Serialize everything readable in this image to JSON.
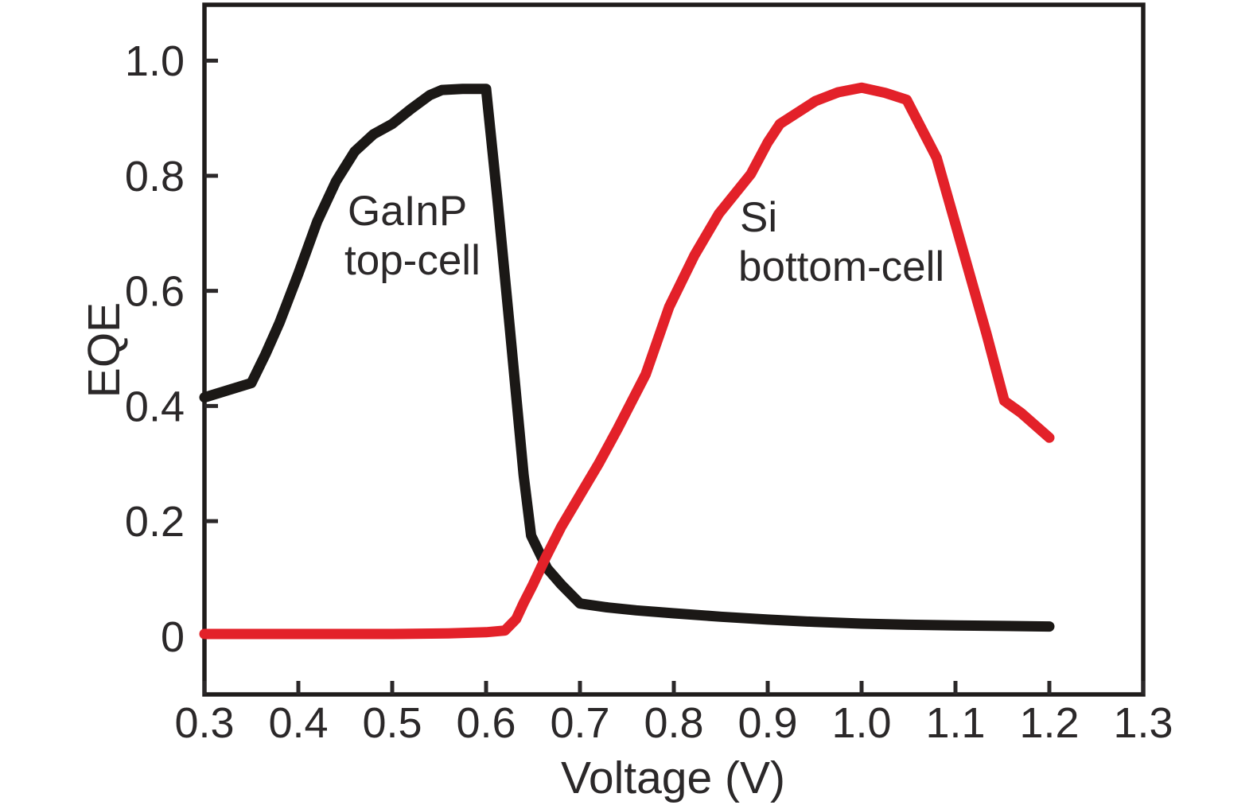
{
  "chart_data": {
    "type": "line",
    "title": "",
    "xlabel": "Voltage (V)",
    "ylabel": "EQE",
    "xlim": [
      0.3,
      1.3
    ],
    "ylim": [
      -0.101,
      1.097
    ],
    "grid": false,
    "legend_position": "none",
    "background_color": "#ffffff",
    "axis_color": "#2b2829",
    "x_ticks": {
      "values": [
        0.3,
        0.4,
        0.5,
        0.6,
        0.7,
        0.8,
        0.9,
        1.0,
        1.1,
        1.2,
        1.3
      ],
      "labels": [
        "0.3",
        "0.4",
        "0.5",
        "0.6",
        "0.7",
        "0.8",
        "0.9",
        "1.0",
        "1.1",
        "1.2",
        "1.3"
      ]
    },
    "y_ticks": {
      "values": [
        0,
        0.2,
        0.4,
        0.6,
        0.8,
        1.0
      ],
      "labels": [
        "0",
        "0.2",
        "0.4",
        "0.6",
        "0.8",
        "1.0"
      ]
    },
    "series": [
      {
        "name": "GaInP top-cell",
        "color": "#1b1816",
        "stroke_width": 13,
        "points": [
          [
            0.3,
            0.415
          ],
          [
            0.35,
            0.44
          ],
          [
            0.365,
            0.49
          ],
          [
            0.38,
            0.545
          ],
          [
            0.4,
            0.63
          ],
          [
            0.42,
            0.72
          ],
          [
            0.44,
            0.79
          ],
          [
            0.46,
            0.842
          ],
          [
            0.48,
            0.872
          ],
          [
            0.5,
            0.89
          ],
          [
            0.52,
            0.916
          ],
          [
            0.54,
            0.94
          ],
          [
            0.553,
            0.949
          ],
          [
            0.575,
            0.951
          ],
          [
            0.6,
            0.951
          ],
          [
            0.612,
            0.76
          ],
          [
            0.625,
            0.54
          ],
          [
            0.64,
            0.28
          ],
          [
            0.648,
            0.175
          ],
          [
            0.656,
            0.148
          ],
          [
            0.665,
            0.118
          ],
          [
            0.68,
            0.09
          ],
          [
            0.7,
            0.057
          ],
          [
            0.73,
            0.05
          ],
          [
            0.76,
            0.045
          ],
          [
            0.8,
            0.04
          ],
          [
            0.85,
            0.034
          ],
          [
            0.9,
            0.029
          ],
          [
            0.95,
            0.025
          ],
          [
            1.0,
            0.022
          ],
          [
            1.05,
            0.02
          ],
          [
            1.1,
            0.019
          ],
          [
            1.15,
            0.018
          ],
          [
            1.2,
            0.017
          ]
        ]
      },
      {
        "name": "Si bottom-cell",
        "color": "#e32129",
        "stroke_width": 13,
        "points": [
          [
            0.3,
            0.004
          ],
          [
            0.4,
            0.004
          ],
          [
            0.5,
            0.004
          ],
          [
            0.56,
            0.005
          ],
          [
            0.6,
            0.007
          ],
          [
            0.62,
            0.01
          ],
          [
            0.632,
            0.03
          ],
          [
            0.64,
            0.058
          ],
          [
            0.65,
            0.09
          ],
          [
            0.663,
            0.135
          ],
          [
            0.68,
            0.19
          ],
          [
            0.7,
            0.245
          ],
          [
            0.72,
            0.3
          ],
          [
            0.74,
            0.36
          ],
          [
            0.77,
            0.455
          ],
          [
            0.795,
            0.572
          ],
          [
            0.822,
            0.662
          ],
          [
            0.848,
            0.734
          ],
          [
            0.882,
            0.803
          ],
          [
            0.9,
            0.858
          ],
          [
            0.913,
            0.89
          ],
          [
            0.951,
            0.93
          ],
          [
            0.975,
            0.945
          ],
          [
            1.0,
            0.953
          ],
          [
            1.025,
            0.944
          ],
          [
            1.048,
            0.932
          ],
          [
            1.08,
            0.831
          ],
          [
            1.1,
            0.716
          ],
          [
            1.133,
            0.526
          ],
          [
            1.152,
            0.409
          ],
          [
            1.17,
            0.388
          ],
          [
            1.2,
            0.345
          ]
        ]
      }
    ],
    "annotations": [
      {
        "series": "GaInP top-cell",
        "lines": [
          "GaInP",
          "top-cell"
        ]
      },
      {
        "series": "Si bottom-cell",
        "lines": [
          "Si",
          "bottom-cell"
        ]
      }
    ]
  }
}
